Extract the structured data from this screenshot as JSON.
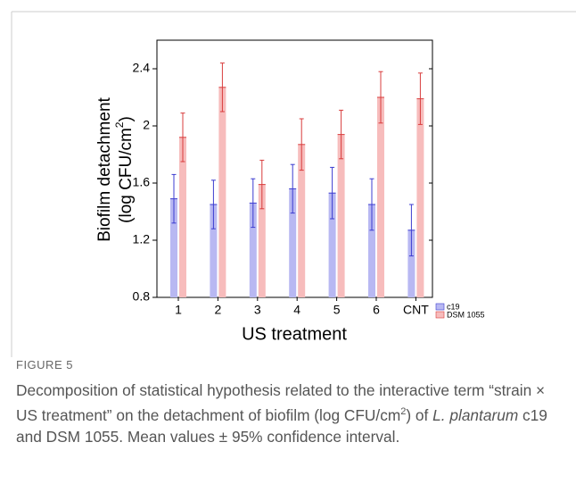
{
  "chart_data": {
    "type": "bar",
    "y_label": [
      "Biofilm detachment",
      "(log CFU/cm",
      "2",
      ")"
    ],
    "x_label": "US treatment",
    "categories": [
      "1",
      "2",
      "3",
      "4",
      "5",
      "6",
      "CNT"
    ],
    "series": [
      {
        "name": "c19",
        "color": "#b8b8f2",
        "edge": "#3c3cd0",
        "values": [
          1.49,
          1.45,
          1.46,
          1.56,
          1.53,
          1.45,
          1.27
        ],
        "errors": [
          0.17,
          0.17,
          0.17,
          0.17,
          0.18,
          0.18,
          0.18
        ]
      },
      {
        "name": "DSM 1055",
        "color": "#f7bcbc",
        "edge": "#d83c3c",
        "values": [
          1.92,
          2.27,
          1.59,
          1.87,
          1.94,
          2.2,
          2.19
        ],
        "errors": [
          0.17,
          0.17,
          0.17,
          0.18,
          0.17,
          0.18,
          0.18
        ]
      }
    ],
    "ylim": [
      0.8,
      2.6
    ],
    "yticks": [
      0.8,
      1.2,
      1.6,
      2.0,
      2.4
    ],
    "label": "FIGURE 5",
    "caption": [
      "Decomposition of statistical hypothesis related to the interactive term “strain × US treatment” on the detachment of biofilm (log CFU/cm",
      "2",
      ") of ",
      "L. plantarum",
      " c19 and DSM 1055. Mean values ± 95% confidence interval."
    ]
  }
}
